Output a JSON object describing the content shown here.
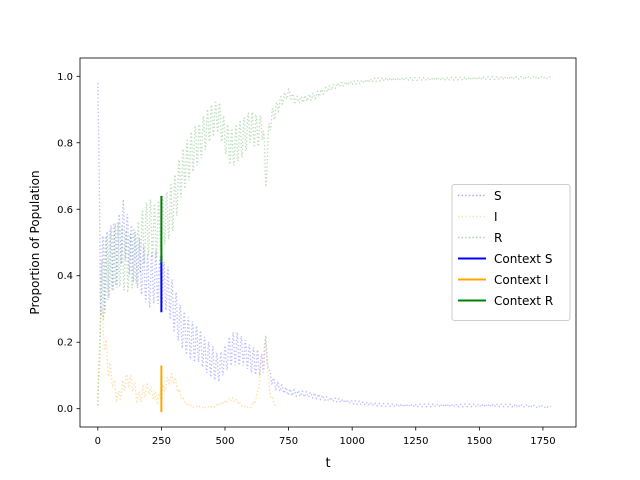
{
  "chart_data": {
    "type": "line",
    "title": "",
    "xlabel": "t",
    "ylabel": "Proportion of Population",
    "xlim": [
      -70,
      1880
    ],
    "ylim": [
      -0.055,
      1.055
    ],
    "x_ticks": [
      0,
      250,
      500,
      750,
      1000,
      1250,
      1500,
      1750
    ],
    "x_tick_labels": [
      "0",
      "250",
      "500",
      "750",
      "1000",
      "1250",
      "1500",
      "1750"
    ],
    "y_ticks": [
      0.0,
      0.2,
      0.4,
      0.6,
      0.8,
      1.0
    ],
    "y_tick_labels": [
      "0.0",
      "0.2",
      "0.4",
      "0.6",
      "0.8",
      "1.0"
    ],
    "grid": false,
    "legend_position": "center-right",
    "oscillation_period": 16,
    "series": [
      {
        "name": "S",
        "color": "#0000ff",
        "style": "dotted",
        "opacity": 0.25,
        "x": [
          0,
          10,
          25,
          50,
          75,
          100,
          125,
          150,
          175,
          200,
          225,
          250,
          275,
          300,
          325,
          350,
          375,
          400,
          425,
          450,
          475,
          500,
          525,
          550,
          575,
          600,
          625,
          650,
          660,
          675,
          700,
          750,
          800,
          850,
          900,
          950,
          1000,
          1100,
          1200,
          1300,
          1400,
          1500,
          1600,
          1700,
          1780
        ],
        "y": [
          0.98,
          0.4,
          0.4,
          0.45,
          0.46,
          0.55,
          0.48,
          0.45,
          0.42,
          0.38,
          0.4,
          0.38,
          0.36,
          0.3,
          0.25,
          0.22,
          0.2,
          0.19,
          0.16,
          0.14,
          0.12,
          0.15,
          0.18,
          0.18,
          0.17,
          0.15,
          0.14,
          0.13,
          0.2,
          0.1,
          0.07,
          0.05,
          0.045,
          0.04,
          0.03,
          0.025,
          0.02,
          0.012,
          0.01,
          0.01,
          0.01,
          0.01,
          0.01,
          0.008,
          0.005
        ],
        "amplitude": [
          0,
          0.12,
          0.12,
          0.1,
          0.1,
          0.08,
          0.08,
          0.08,
          0.08,
          0.08,
          0.08,
          0.07,
          0.07,
          0.07,
          0.06,
          0.06,
          0.06,
          0.05,
          0.05,
          0.05,
          0.04,
          0.04,
          0.05,
          0.05,
          0.04,
          0.04,
          0.04,
          0.03,
          0.02,
          0.015,
          0.012,
          0.01,
          0.008,
          0.008,
          0.006,
          0.005,
          0.005,
          0.004,
          0.004,
          0.004,
          0.004,
          0.004,
          0.004,
          0.003,
          0.002
        ]
      },
      {
        "name": "I",
        "color": "#ffa500",
        "style": "dotted",
        "opacity": 0.35,
        "x": [
          0,
          10,
          25,
          40,
          60,
          80,
          100,
          120,
          140,
          160,
          180,
          200,
          220,
          240,
          260,
          280,
          300,
          320,
          340,
          360,
          380,
          400,
          450,
          500,
          525,
          550,
          575,
          600,
          625,
          650,
          660,
          675,
          700
        ],
        "y": [
          0.01,
          0.3,
          0.22,
          0.13,
          0.08,
          0.03,
          0.07,
          0.09,
          0.07,
          0.03,
          0.05,
          0.06,
          0.04,
          0.03,
          0.06,
          0.09,
          0.09,
          0.05,
          0.02,
          0.01,
          0.005,
          0.005,
          0.005,
          0.02,
          0.03,
          0.02,
          0.005,
          0.005,
          0.03,
          0.17,
          0.2,
          0.05,
          0.005
        ],
        "amplitude": [
          0,
          0.05,
          0.04,
          0.03,
          0.02,
          0.02,
          0.02,
          0.02,
          0.02,
          0.02,
          0.02,
          0.015,
          0.015,
          0.015,
          0.015,
          0.015,
          0.015,
          0.01,
          0.005,
          0.003,
          0.002,
          0.002,
          0.002,
          0.005,
          0.005,
          0.005,
          0.002,
          0.002,
          0.01,
          0.02,
          0.01,
          0.01,
          0.002
        ]
      },
      {
        "name": "R",
        "color": "#008000",
        "style": "dotted",
        "opacity": 0.25,
        "x": [
          0,
          10,
          25,
          50,
          75,
          100,
          125,
          150,
          175,
          200,
          225,
          250,
          275,
          300,
          325,
          350,
          375,
          400,
          425,
          450,
          475,
          500,
          525,
          550,
          575,
          600,
          625,
          650,
          660,
          675,
          700,
          725,
          750,
          775,
          800,
          850,
          900,
          950,
          1000,
          1050,
          1100,
          1200,
          1300,
          1400,
          1500,
          1600,
          1700,
          1780
        ],
        "y": [
          0.01,
          0.3,
          0.4,
          0.45,
          0.47,
          0.45,
          0.44,
          0.46,
          0.51,
          0.55,
          0.53,
          0.56,
          0.58,
          0.62,
          0.7,
          0.74,
          0.78,
          0.8,
          0.84,
          0.87,
          0.88,
          0.82,
          0.78,
          0.8,
          0.82,
          0.85,
          0.83,
          0.85,
          0.68,
          0.86,
          0.9,
          0.93,
          0.95,
          0.93,
          0.93,
          0.94,
          0.96,
          0.975,
          0.98,
          0.985,
          0.99,
          0.992,
          0.992,
          0.993,
          0.994,
          0.995,
          0.996,
          0.997
        ],
        "amplitude": [
          0,
          0.12,
          0.12,
          0.1,
          0.1,
          0.1,
          0.09,
          0.09,
          0.09,
          0.09,
          0.09,
          0.08,
          0.08,
          0.08,
          0.07,
          0.07,
          0.07,
          0.06,
          0.06,
          0.05,
          0.05,
          0.05,
          0.06,
          0.06,
          0.06,
          0.05,
          0.05,
          0.04,
          0.03,
          0.03,
          0.02,
          0.015,
          0.012,
          0.01,
          0.01,
          0.01,
          0.008,
          0.006,
          0.005,
          0.005,
          0.005,
          0.004,
          0.004,
          0.004,
          0.004,
          0.004,
          0.003,
          0.002
        ]
      },
      {
        "name": "Context S",
        "color": "#0000ff",
        "style": "solid",
        "opacity": 1,
        "x": [
          250,
          250,
          250,
          250,
          250,
          250,
          250,
          250
        ],
        "y": [
          0.29,
          0.35,
          0.31,
          0.4,
          0.33,
          0.45,
          0.36,
          0.46
        ],
        "amplitude": []
      },
      {
        "name": "Context I",
        "color": "#ffa500",
        "style": "solid",
        "opacity": 1,
        "x": [
          250,
          250,
          250,
          250,
          250,
          250,
          250,
          250
        ],
        "y": [
          -0.01,
          0.13,
          0.01,
          0.1,
          0.03,
          0.08,
          0.05,
          0.07
        ],
        "amplitude": []
      },
      {
        "name": "Context R",
        "color": "#008000",
        "style": "solid",
        "opacity": 1,
        "x": [
          250,
          250,
          250,
          250,
          250,
          250,
          250,
          250
        ],
        "y": [
          0.64,
          0.5,
          0.62,
          0.45,
          0.58,
          0.44,
          0.52,
          0.48
        ],
        "amplitude": []
      }
    ]
  }
}
